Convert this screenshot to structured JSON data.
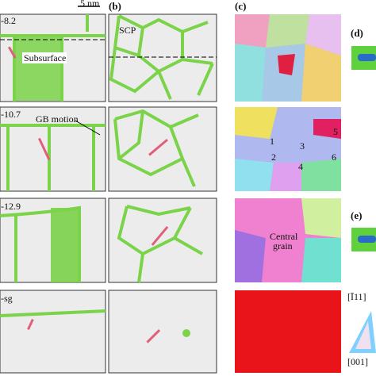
{
  "panel_labels": {
    "b": "(b)",
    "c": "(c)",
    "d": "(d)",
    "e": "(e)"
  },
  "scale_bar": "5 nm",
  "rows": [
    {
      "label": "-8.2"
    },
    {
      "label": "-10.7"
    },
    {
      "label": "-12.9"
    },
    {
      "label": "-sg"
    }
  ],
  "annotations": {
    "subsurface": "Subsurface",
    "scp": "SCP",
    "gb_motion": "GB motion",
    "central_grain": [
      "Central",
      "grain"
    ]
  },
  "grain_numbers": [
    "1",
    "2",
    "3",
    "4",
    "5",
    "6"
  ],
  "legend": {
    "top": "[Ī11]",
    "bottom": "[001]"
  }
}
